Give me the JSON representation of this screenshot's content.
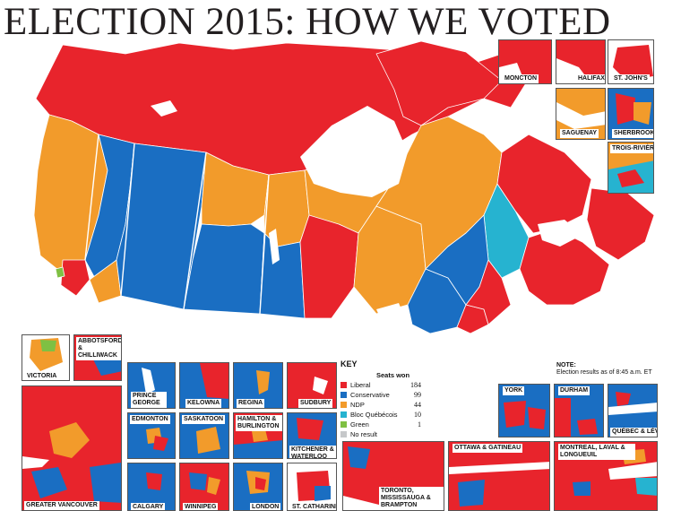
{
  "header": {
    "title": "ELECTION 2015: HOW WE VOTED"
  },
  "colors": {
    "liberal": "#e8242c",
    "conservative": "#1a6ec2",
    "ndp": "#f29b2b",
    "bloc": "#26b3d0",
    "green": "#7fc043",
    "no_result": "#c6c8ca",
    "water": "#ffffff",
    "border": "#ffffff"
  },
  "key": {
    "title": "KEY",
    "seats_header": "Seats won",
    "parties": [
      {
        "id": "liberal",
        "name": "Liberal",
        "seats": "184"
      },
      {
        "id": "conservative",
        "name": "Conservative",
        "seats": "99"
      },
      {
        "id": "ndp",
        "name": "NDP",
        "seats": "44"
      },
      {
        "id": "bloc",
        "name": "Bloc Québécois",
        "seats": "10"
      },
      {
        "id": "green",
        "name": "Green",
        "seats": "1"
      },
      {
        "id": "no_result",
        "name": "No result",
        "seats": ""
      }
    ]
  },
  "note": {
    "heading": "NOTE:",
    "text": "Election results as of 8:45 a.m. ET"
  },
  "insets": {
    "moncton": "MONCTON",
    "halifax": "HALIFAX",
    "st_johns": "ST. JOHN'S",
    "saguenay": "SAGUENAY",
    "sherbrooke": "SHERBROOKE",
    "trois_rivieres": "TROIS-RIVIÈRES",
    "victoria": "VICTORIA",
    "abbotsford": "ABBOTSFORD & CHILLIWACK",
    "greater_vancouver": "GREATER VANCOUVER",
    "prince_george": "PRINCE GEORGE",
    "kelowna": "KELOWNA",
    "regina": "REGINA",
    "sudbury": "SUDBURY",
    "edmonton": "EDMONTON",
    "saskatoon": "SASKATOON",
    "hamilton": "HAMILTON & BURLINGTON",
    "kitchener": "KITCHENER & WATERLOO",
    "calgary": "CALGARY",
    "winnipeg": "WINNIPEG",
    "london": "LONDON",
    "st_catharines": "ST. CATHARINES",
    "york": "YORK",
    "durham": "DURHAM",
    "quebec": "QUÉBEC & LÉVIS",
    "ottawa": "OTTAWA & GATINEAU",
    "toronto": "TORONTO, MISSISSAUGA & BRAMPTON",
    "montreal": "MONTREAL, LAVAL & LONGUEUIL"
  }
}
